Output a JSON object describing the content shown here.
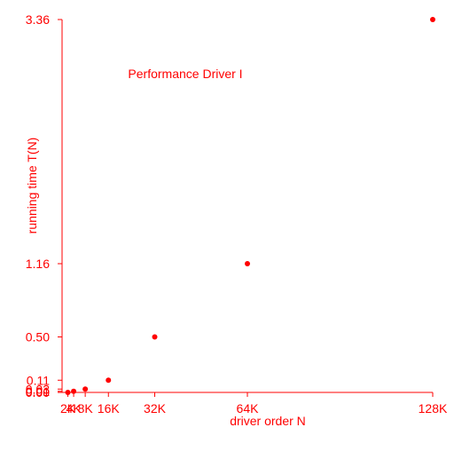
{
  "chart_data": {
    "type": "scatter",
    "title": "Performance Driver I",
    "xlabel": "driver order N",
    "ylabel": "running time T(N)",
    "x_tick_labels": [
      "2K",
      "4K",
      "8K",
      "16K",
      "32K",
      "64K",
      "128K"
    ],
    "y_tick_labels": [
      "0.00",
      "0.01",
      "0.03",
      "0.11",
      "0.50",
      "1.16",
      "3.36"
    ],
    "points": [
      {
        "x": 2000,
        "y": 0.0
      },
      {
        "x": 4000,
        "y": 0.01
      },
      {
        "x": 8000,
        "y": 0.03
      },
      {
        "x": 16000,
        "y": 0.11
      },
      {
        "x": 32000,
        "y": 0.5
      },
      {
        "x": 64000,
        "y": 1.16
      },
      {
        "x": 128000,
        "y": 3.36
      }
    ],
    "xlim": [
      0,
      128000
    ],
    "ylim": [
      0,
      3.36
    ],
    "grid": false,
    "legend": "none",
    "color": "#ff0000"
  }
}
